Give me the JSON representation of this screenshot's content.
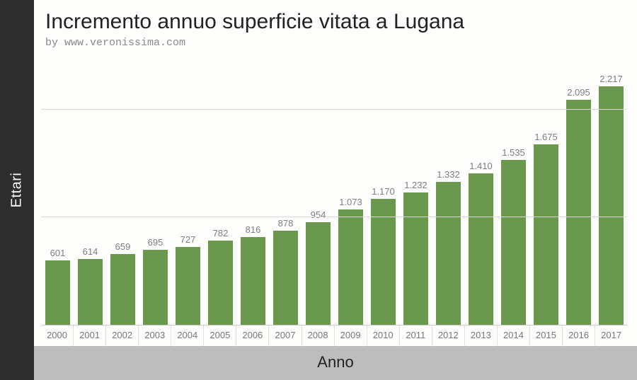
{
  "chart": {
    "type": "bar",
    "title": "Incremento annuo superficie vitata a Lugana",
    "subtitle": "by www.veronissima.com",
    "x_axis_label": "Anno",
    "y_axis_label": "Ettari",
    "categories": [
      "2000",
      "2001",
      "2002",
      "2003",
      "2004",
      "2005",
      "2006",
      "2007",
      "2008",
      "2009",
      "2010",
      "2011",
      "2012",
      "2013",
      "2014",
      "2015",
      "2016",
      "2017"
    ],
    "values": [
      601,
      614,
      659,
      695,
      727,
      782,
      816,
      878,
      954,
      1073,
      1170,
      1232,
      1332,
      1410,
      1535,
      1675,
      2095,
      2217
    ],
    "value_labels": [
      "601",
      "614",
      "659",
      "695",
      "727",
      "782",
      "816",
      "878",
      "954",
      "1.073",
      "1.170",
      "1.232",
      "1.332",
      "1.410",
      "1.535",
      "1.675",
      "2.095",
      "2.217"
    ],
    "ylim": [
      0,
      2500
    ],
    "gridline_values": [
      1000,
      2000
    ],
    "bar_color": "#6a994e",
    "background_color": "#fdfdfb",
    "grid_color": "#d9d9d7",
    "axis_tick_color": "#777777",
    "title_color": "#222222",
    "subtitle_color": "#8a8a8a",
    "value_label_color": "#7e7e7e",
    "y_strip_bg": "#2d2d2d",
    "y_strip_text": "#ffffff",
    "x_strip_bg": "#bdbdbd",
    "title_fontsize": 30,
    "subtitle_fontsize": 15,
    "tick_fontsize": 13,
    "value_fontsize": 13,
    "axis_label_fontsize": 22,
    "bar_width_ratio": 0.78
  }
}
